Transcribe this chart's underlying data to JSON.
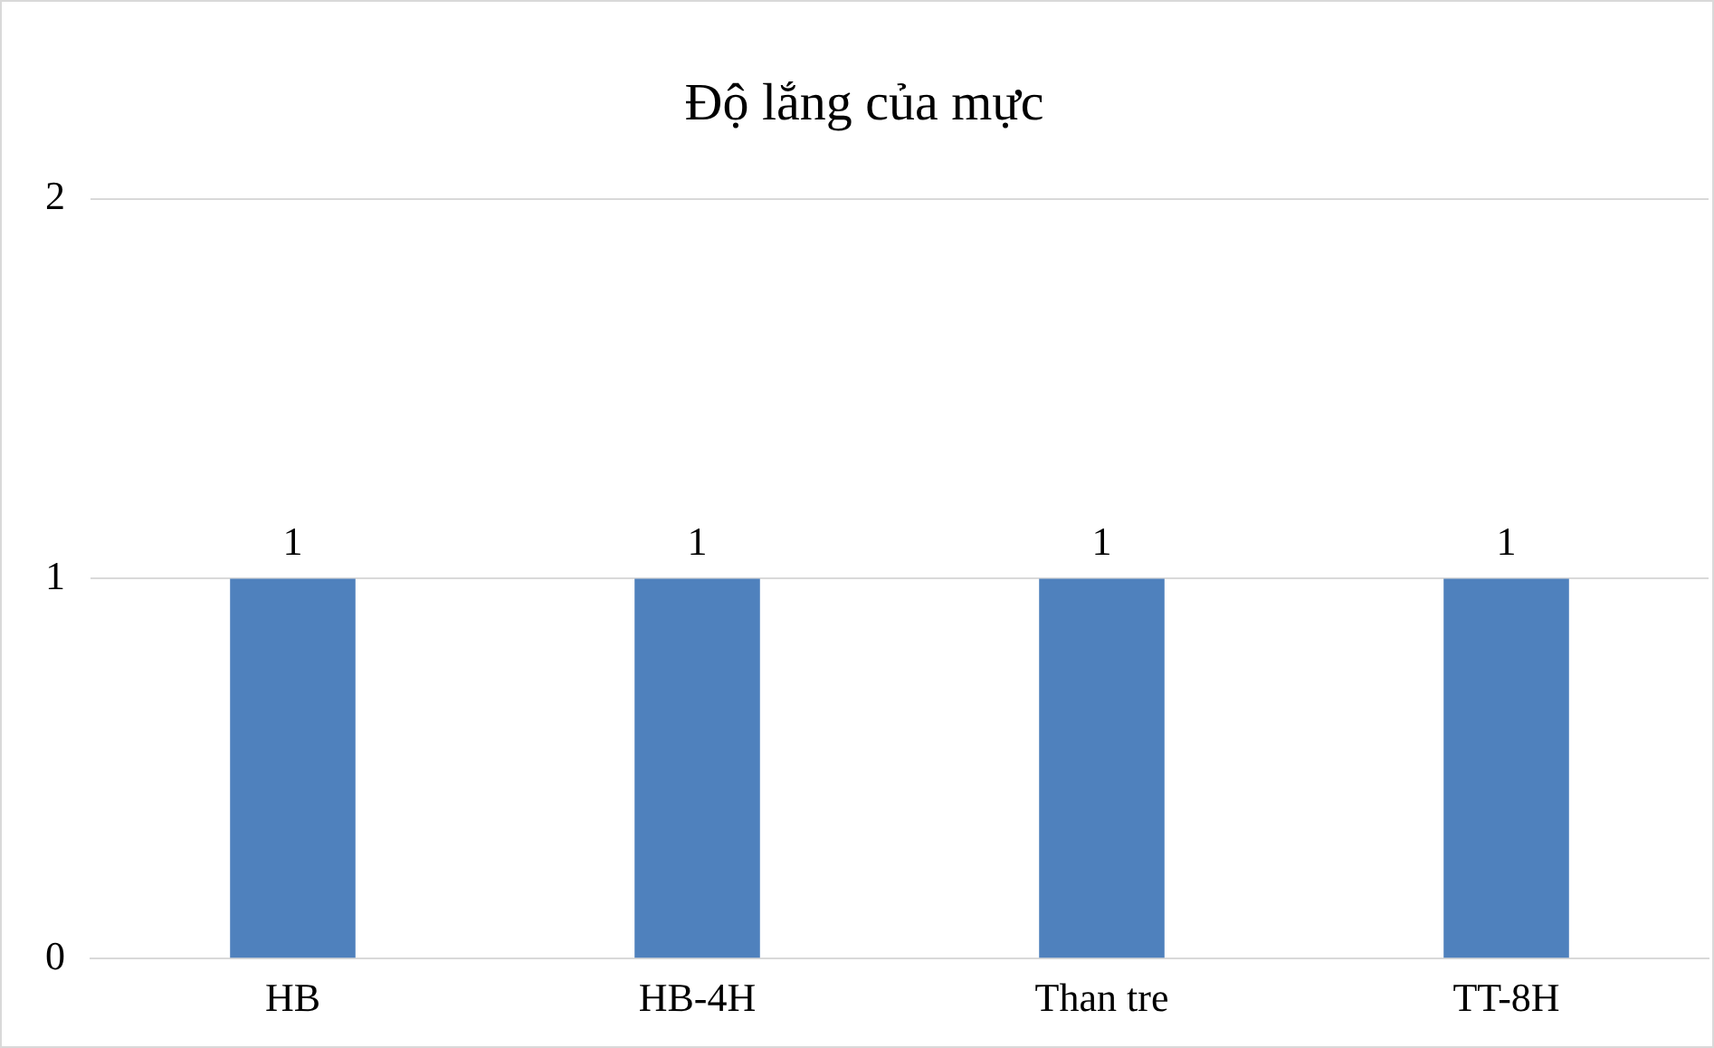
{
  "chart_data": {
    "type": "bar",
    "title": "Độ lắng của mực",
    "categories": [
      "HB",
      "HB-4H",
      "Than tre",
      "TT-8H"
    ],
    "values": [
      1,
      1,
      1,
      1
    ],
    "color": "#4f81bd",
    "ylim": [
      0,
      2
    ],
    "yticks": [
      0,
      1,
      2
    ],
    "grid": "y",
    "data_labels": true
  }
}
